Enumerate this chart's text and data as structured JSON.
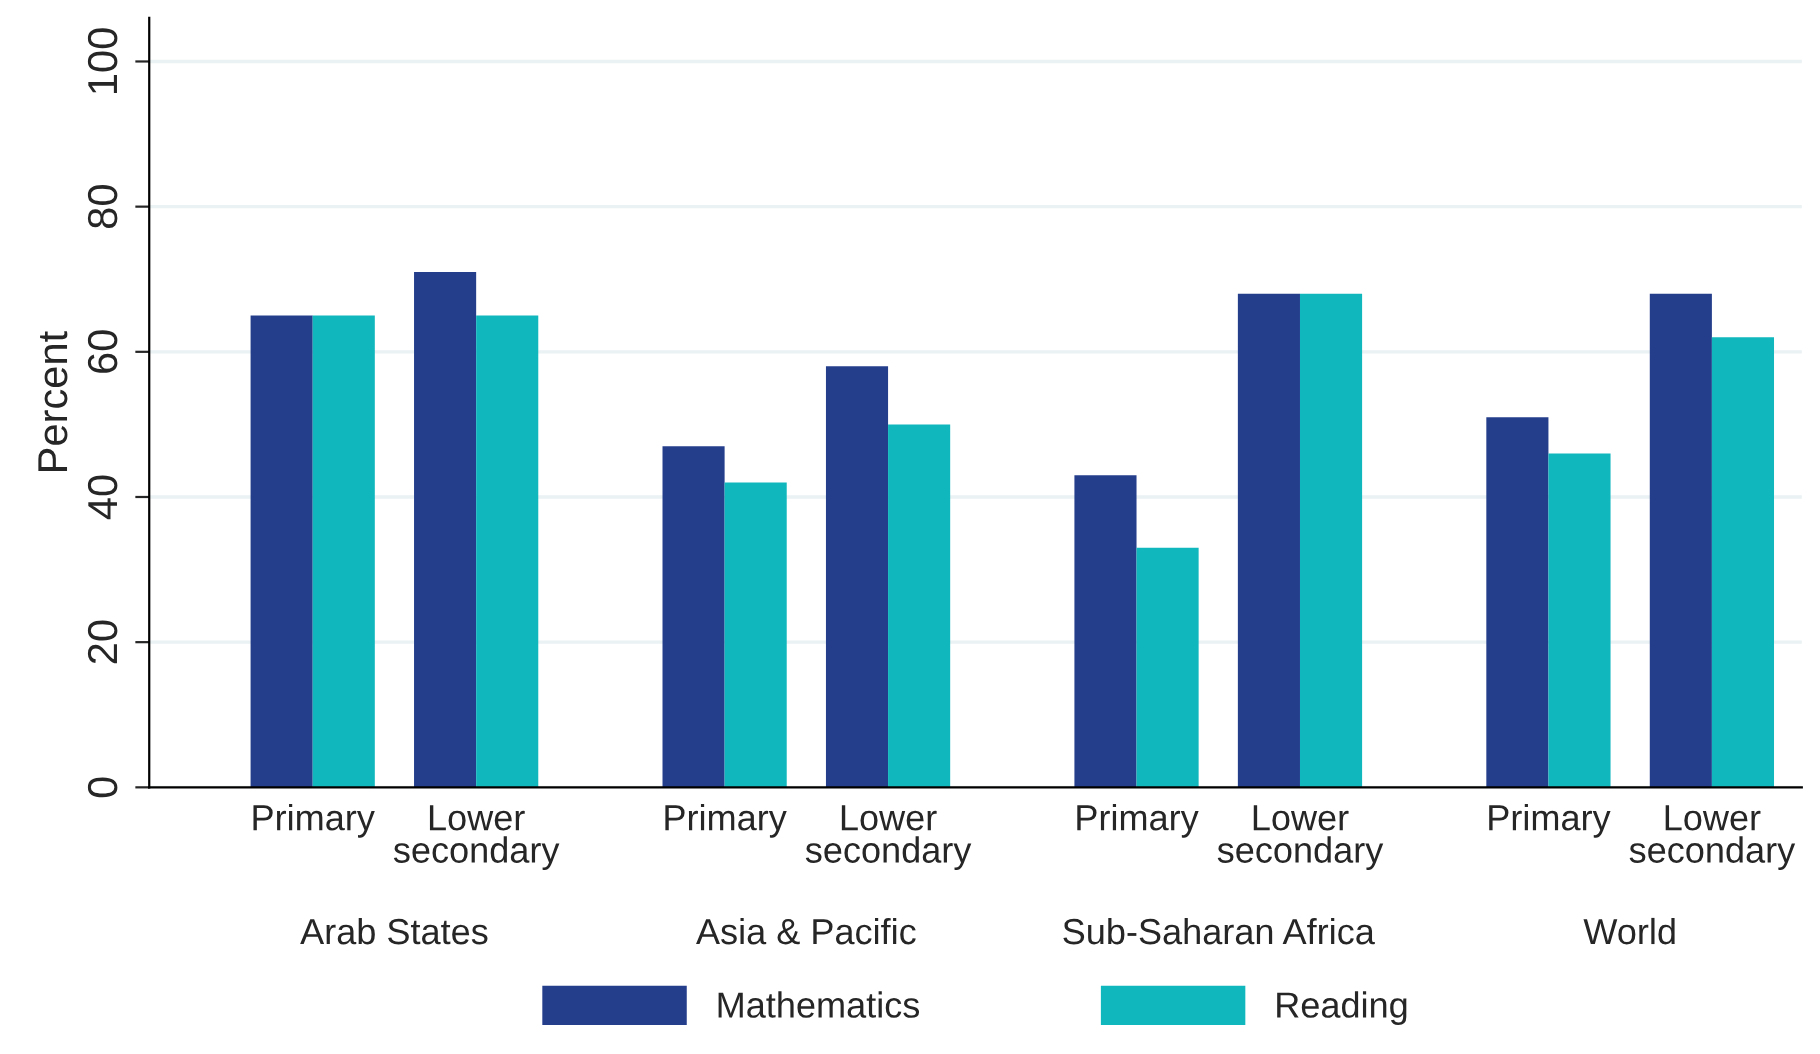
{
  "chart_data": {
    "type": "bar",
    "ylabel": "Percent",
    "categories": [
      "Primary",
      "Lower\nsecondary",
      "Primary",
      "Lower\nsecondary",
      "Primary",
      "Lower\nsecondary",
      "Primary",
      "Lower\nsecondary"
    ],
    "series": [
      {
        "name": "Mathematics",
        "color": "#243e8c",
        "values": [
          65,
          71,
          47,
          58,
          43,
          68,
          51,
          68
        ]
      },
      {
        "name": "Reading",
        "color": "#10b7bd",
        "values": [
          65,
          65,
          42,
          50,
          33,
          68,
          46,
          62
        ]
      }
    ],
    "annotations": [
      "Arab States",
      "Asia & Pacific",
      "Sub-Saharan Africa",
      "World"
    ],
    "ylim": [
      0,
      106
    ],
    "yticks": [
      0,
      20,
      40,
      60,
      80,
      100
    ],
    "grid": "y",
    "legend": "bottom"
  }
}
